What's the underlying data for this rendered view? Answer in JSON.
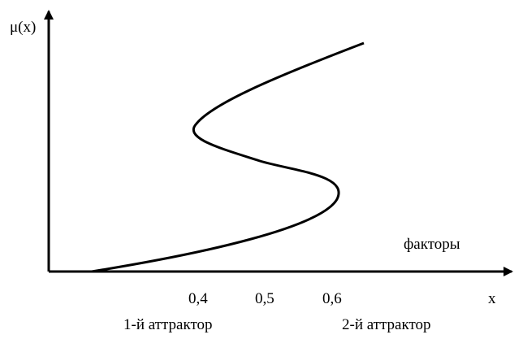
{
  "diagram": {
    "y_axis_label": "μ(x)",
    "x_axis_label": "x",
    "curve_label": "факторы",
    "ticks": [
      {
        "label": "0,4"
      },
      {
        "label": "0,5"
      },
      {
        "label": "0,6"
      }
    ],
    "attractors": [
      {
        "label": "1-й аттрактор"
      },
      {
        "label": "2-й аттрактор"
      }
    ],
    "colors": {
      "line": "#000000",
      "background": "#ffffff"
    }
  }
}
